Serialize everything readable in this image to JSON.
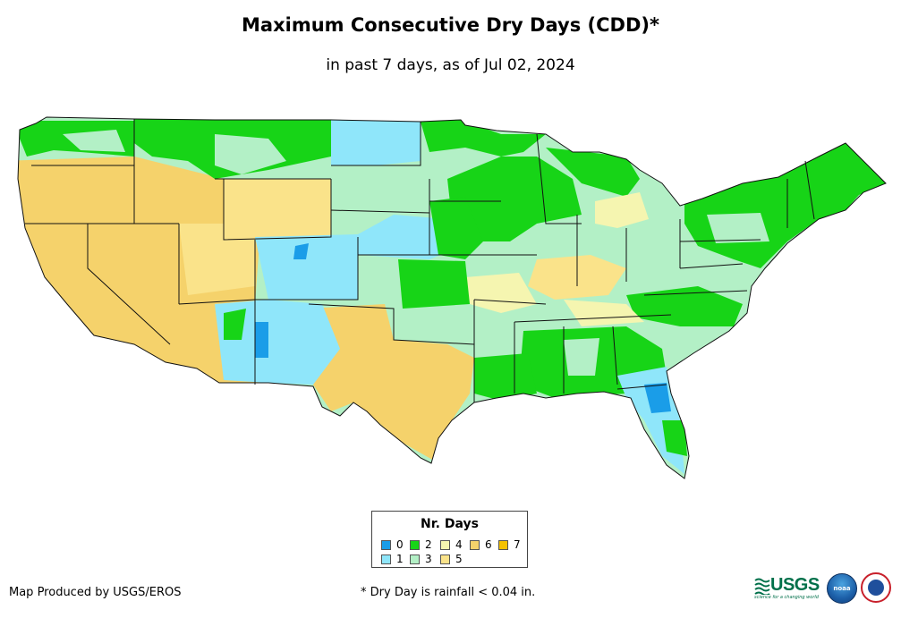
{
  "title": "Maximum Consecutive Dry Days (CDD)*",
  "subtitle": "in past 7 days, as of Jul 02, 2024",
  "legend": {
    "title": "Nr. Days",
    "items": [
      {
        "label": "0",
        "color": "#1a9de8"
      },
      {
        "label": "2",
        "color": "#17d417"
      },
      {
        "label": "4",
        "color": "#f5f5b0"
      },
      {
        "label": "6",
        "color": "#f5d26b"
      },
      {
        "label": "7",
        "color": "#f5c200"
      },
      {
        "label": "1",
        "color": "#8fe6fa"
      },
      {
        "label": "3",
        "color": "#b3f0c6"
      },
      {
        "label": "5",
        "color": "#fae38a"
      }
    ]
  },
  "credit": "Map Produced by USGS/EROS",
  "footnote": "* Dry Day is rainfall < 0.04 in.",
  "logos": {
    "usgs": "USGS",
    "usgs_tagline": "science for a changing world",
    "noaa": "noaa"
  },
  "colors": {
    "day0": "#1a9de8",
    "day1": "#8fe6fa",
    "day2": "#17d417",
    "day3": "#b3f0c6",
    "day4": "#f5f5b0",
    "day5": "#fae38a",
    "day6": "#f5d26b",
    "day7": "#f5c200"
  }
}
